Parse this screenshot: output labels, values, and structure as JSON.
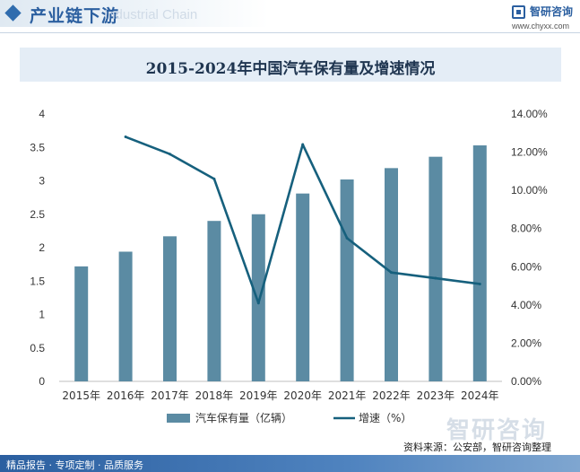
{
  "header": {
    "title": "产业链下游",
    "watermark_text": "Industrial Chain",
    "logo_name": "智研咨询",
    "logo_url": "www.chyxx.com"
  },
  "watermark_brand": "智研咨询",
  "footer": {
    "services": "精品报告 · 专项定制 · 品质服务",
    "source": "资料来源：公安部，智研咨询整理"
  },
  "colors": {
    "bar": "#5b8ba3",
    "line": "#16607d",
    "accent": "#2b5fa0"
  },
  "chart_data": {
    "type": "bar+line",
    "title": "2015-2024年中国汽车保有量及增速情况",
    "categories": [
      "2015年",
      "2016年",
      "2017年",
      "2018年",
      "2019年",
      "2020年",
      "2021年",
      "2022年",
      "2023年",
      "2024年"
    ],
    "series": [
      {
        "name": "汽车保有量（亿辆）",
        "type": "bar",
        "axis": "left",
        "values": [
          1.72,
          1.94,
          2.17,
          2.4,
          2.5,
          2.81,
          3.02,
          3.19,
          3.36,
          3.53
        ]
      },
      {
        "name": "增速（%）",
        "type": "line",
        "axis": "right",
        "values": [
          null,
          12.8,
          11.9,
          10.6,
          4.1,
          12.4,
          7.5,
          5.7,
          5.4,
          5.1
        ]
      }
    ],
    "y_left": {
      "ylim": [
        0,
        4
      ],
      "ticks": [
        "0",
        "0.5",
        "1",
        "1.5",
        "2",
        "2.5",
        "3",
        "3.5",
        "4"
      ]
    },
    "y_right": {
      "ylim": [
        0,
        14
      ],
      "ticks": [
        "0.00%",
        "2.00%",
        "4.00%",
        "6.00%",
        "8.00%",
        "10.00%",
        "12.00%",
        "14.00%"
      ]
    },
    "grid": false,
    "legend": "bottom-center"
  }
}
